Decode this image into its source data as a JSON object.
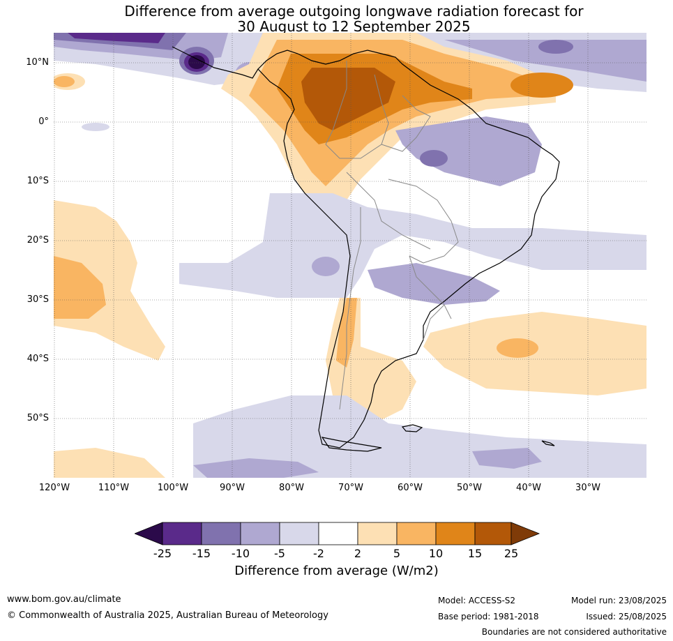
{
  "title_line1": "Difference from average outgoing longwave radiation forecast for",
  "title_line2": "30 August to 12 September 2025",
  "lat_labels": [
    "10°N",
    "0°",
    "10°S",
    "20°S",
    "30°S",
    "40°S",
    "50°S"
  ],
  "lon_labels": [
    "120°W",
    "110°W",
    "100°W",
    "90°W",
    "80°W",
    "70°W",
    "60°W",
    "50°W",
    "40°W",
    "30°W"
  ],
  "colorbar": {
    "ticks": [
      "-25",
      "-15",
      "-10",
      "-5",
      "-2",
      "2",
      "5",
      "10",
      "15",
      "25"
    ],
    "colors": [
      "#2b0a4a",
      "#5a2a8a",
      "#8072ae",
      "#afa8d1",
      "#d8d8ea",
      "#ffffff",
      "#fde0b4",
      "#f9b562",
      "#e08519",
      "#b35808",
      "#7f3b08"
    ],
    "label": "Difference from average (W/m2)"
  },
  "footer": {
    "url": "www.bom.gov.au/climate",
    "copyright": "© Commonwealth of Australia 2025, Australian Bureau of Meteorology",
    "model": "Model: ACCESS-S2",
    "model_run": "Model run: 23/08/2025",
    "base_period": "Base period: 1981-2018",
    "issued": "Issued: 25/08/2025",
    "disclaimer": "Boundaries are not considered authoritative"
  }
}
